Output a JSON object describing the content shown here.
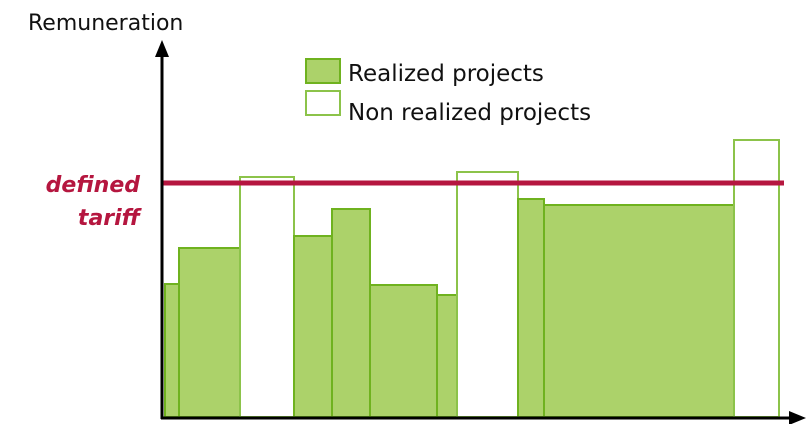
{
  "diagram": {
    "y_axis_label": "Remuneration",
    "tariff_label_line1": "defined",
    "tariff_label_line2": "tariff",
    "legend": {
      "realized_label": "Realized projects",
      "non_realized_label": "Non realized projects"
    },
    "colors": {
      "realized_fill": "#acd26a",
      "realized_stroke": "#6fb21f",
      "non_realized_fill": "#ffffff",
      "non_realized_stroke": "#8cc34a",
      "tariff_line": "#b5163f",
      "axis": "#000000"
    }
  }
}
